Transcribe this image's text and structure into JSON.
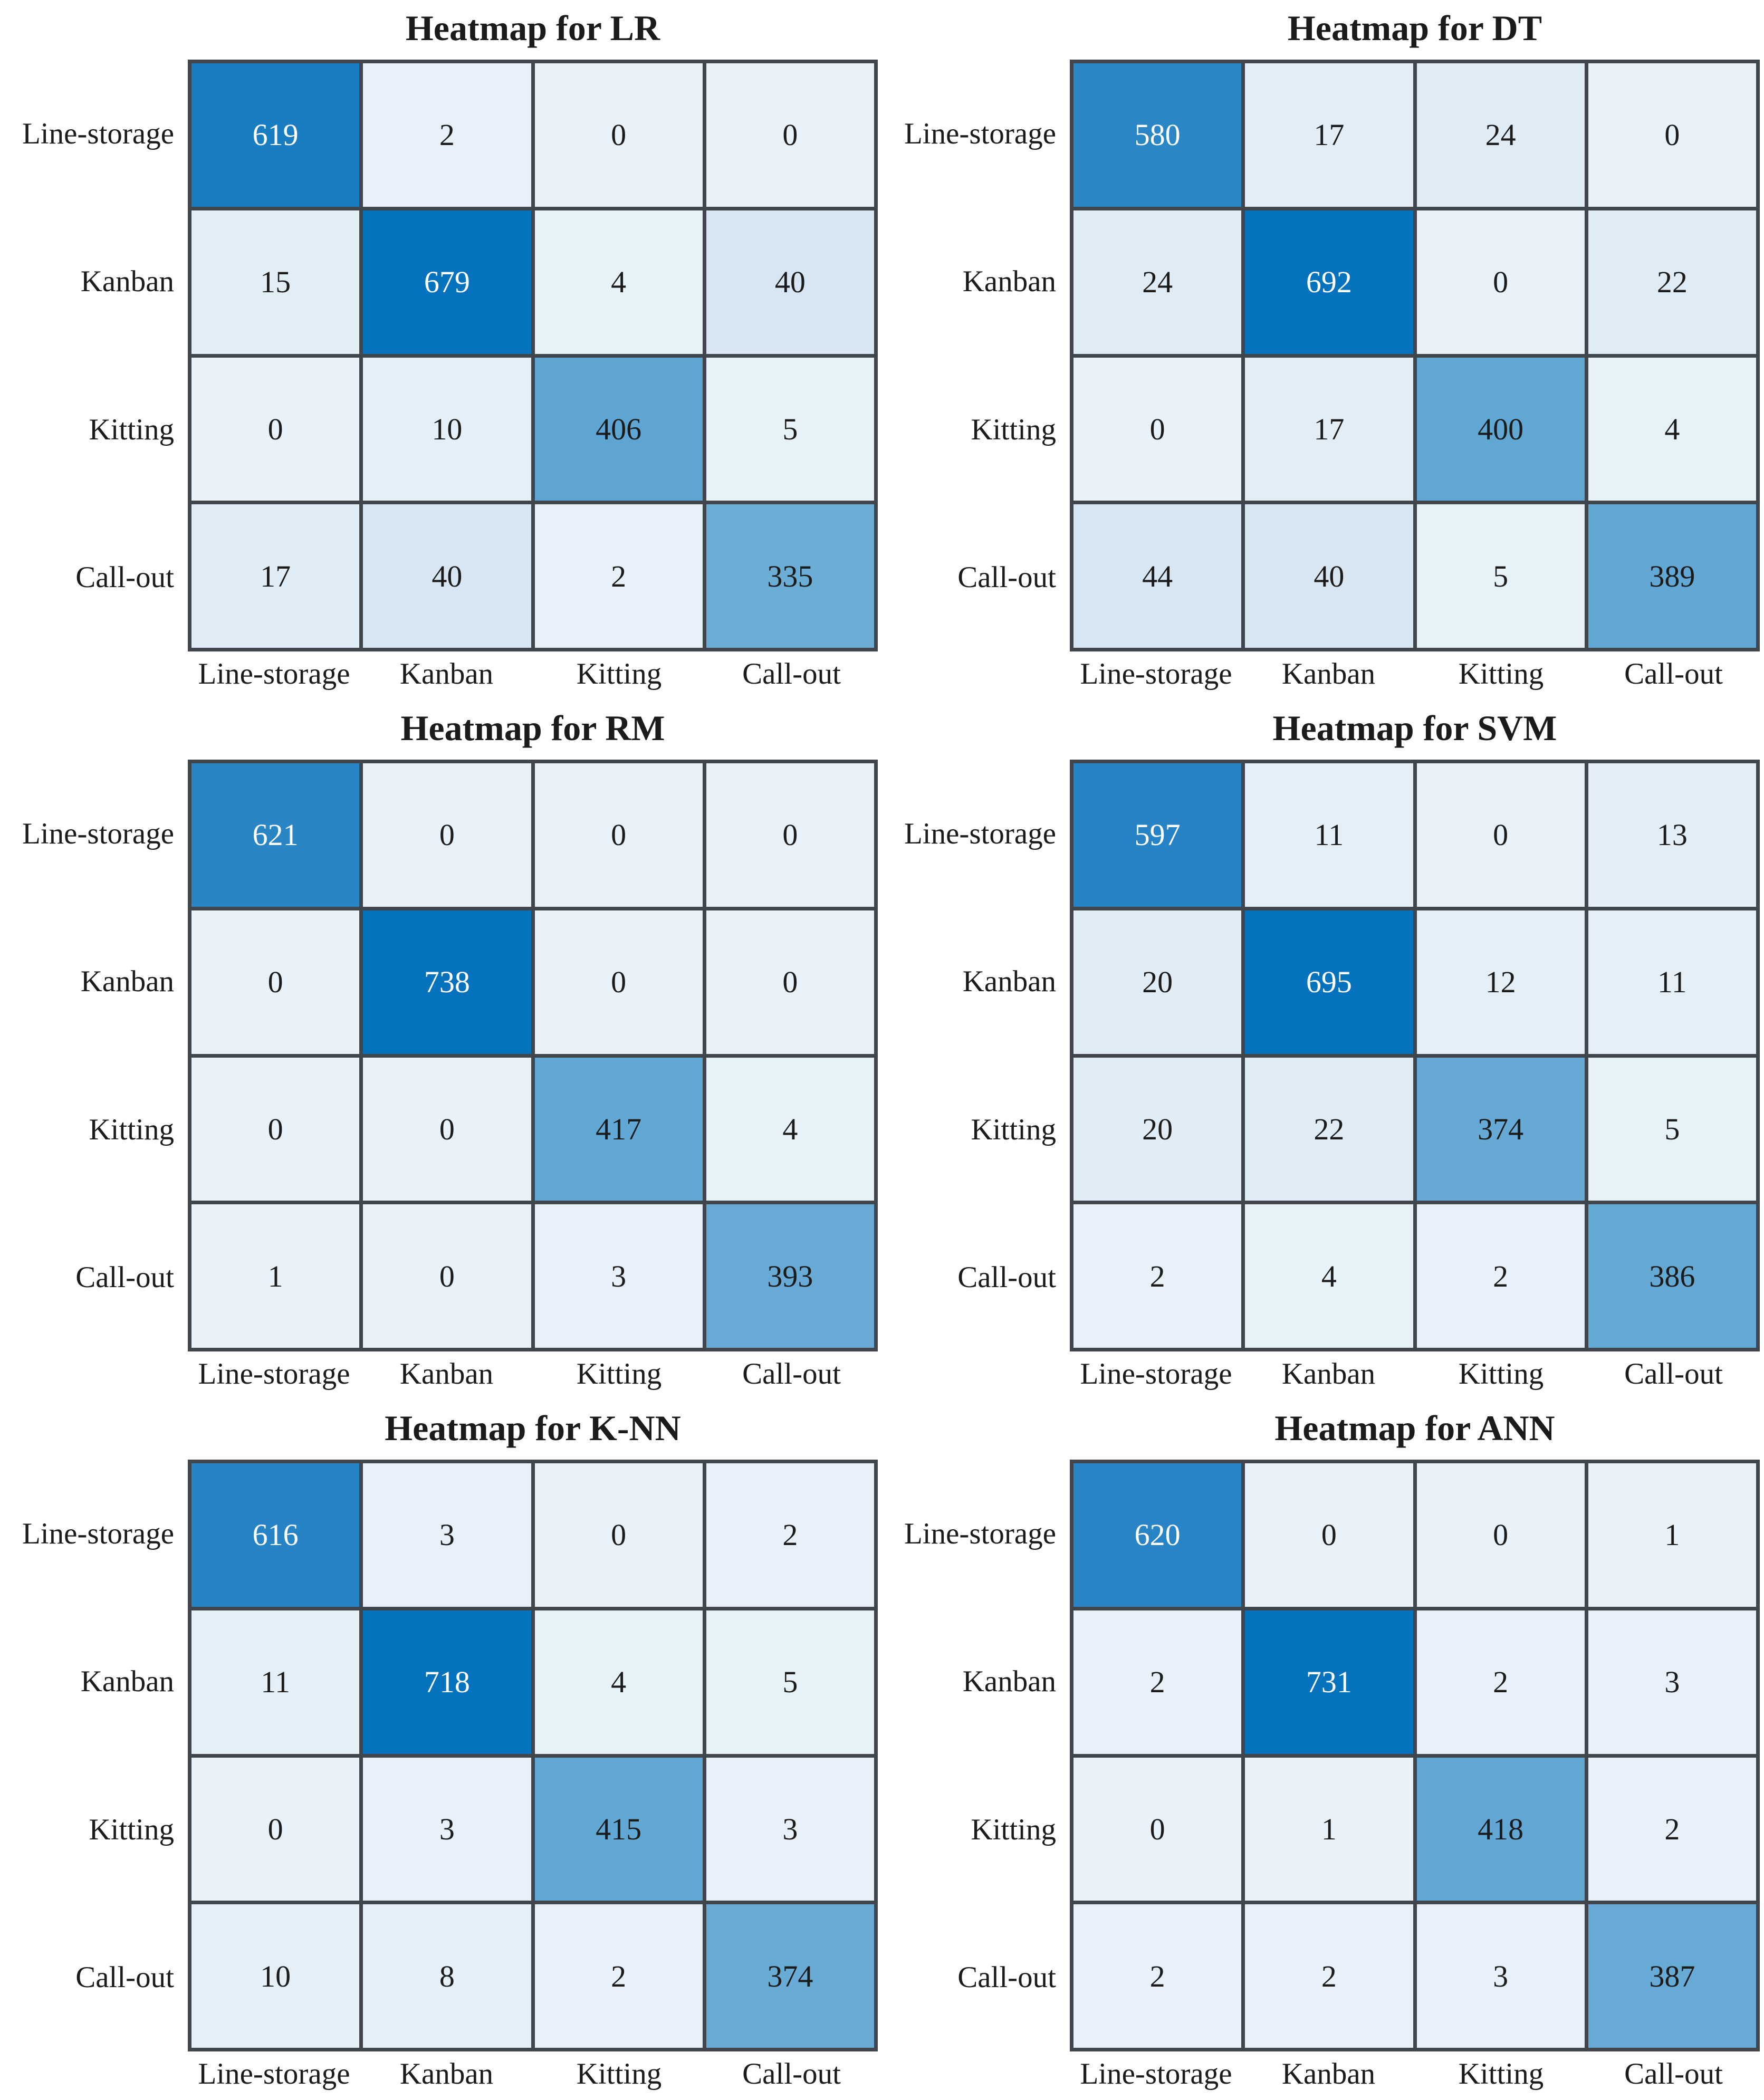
{
  "figure": {
    "background": "#ffffff",
    "grid_rows": 3,
    "grid_cols": 2
  },
  "style": {
    "grid_line_color": "#40464c",
    "title_color": "#1b1b1b",
    "label_color": "#1b1b1b",
    "cell_text_dark": "#1b1b1b",
    "cell_text_light": "#ffffff",
    "white_text_threshold": 0.7,
    "colormap_stops": [
      {
        "t": 0.0,
        "color": "#e9f2f9"
      },
      {
        "t": 0.06,
        "color": "#d7e6f2"
      },
      {
        "t": 0.5,
        "color": "#6aacd6"
      },
      {
        "t": 0.62,
        "color": "#5ca4d2"
      },
      {
        "t": 0.85,
        "color": "#2884c5"
      },
      {
        "t": 1.0,
        "color": "#0472bd"
      }
    ]
  },
  "chart_data": [
    {
      "type": "heatmap",
      "title": "Heatmap for LR",
      "x_categories": [
        "Line-storage",
        "Kanban",
        "Kitting",
        "Call-out"
      ],
      "y_categories": [
        "Line-storage",
        "Kanban",
        "Kitting",
        "Call-out"
      ],
      "matrix": [
        [
          619,
          2,
          0,
          0
        ],
        [
          15,
          679,
          4,
          40
        ],
        [
          0,
          10,
          406,
          5
        ],
        [
          17,
          40,
          2,
          335
        ]
      ],
      "vmin": 0,
      "vmax": 679,
      "legend": "none",
      "grid": "on"
    },
    {
      "type": "heatmap",
      "title": "Heatmap for DT",
      "x_categories": [
        "Line-storage",
        "Kanban",
        "Kitting",
        "Call-out"
      ],
      "y_categories": [
        "Line-storage",
        "Kanban",
        "Kitting",
        "Call-out"
      ],
      "matrix": [
        [
          580,
          17,
          24,
          0
        ],
        [
          24,
          692,
          0,
          22
        ],
        [
          0,
          17,
          400,
          4
        ],
        [
          44,
          40,
          5,
          389
        ]
      ],
      "vmin": 0,
      "vmax": 692,
      "legend": "none",
      "grid": "on"
    },
    {
      "type": "heatmap",
      "title": "Heatmap for RM",
      "x_categories": [
        "Line-storage",
        "Kanban",
        "Kitting",
        "Call-out"
      ],
      "y_categories": [
        "Line-storage",
        "Kanban",
        "Kitting",
        "Call-out"
      ],
      "matrix": [
        [
          621,
          0,
          0,
          0
        ],
        [
          0,
          738,
          0,
          0
        ],
        [
          0,
          0,
          417,
          4
        ],
        [
          1,
          0,
          3,
          393
        ]
      ],
      "vmin": 0,
      "vmax": 738,
      "legend": "none",
      "grid": "on"
    },
    {
      "type": "heatmap",
      "title": "Heatmap for SVM",
      "x_categories": [
        "Line-storage",
        "Kanban",
        "Kitting",
        "Call-out"
      ],
      "y_categories": [
        "Line-storage",
        "Kanban",
        "Kitting",
        "Call-out"
      ],
      "matrix": [
        [
          597,
          11,
          0,
          13
        ],
        [
          20,
          695,
          12,
          11
        ],
        [
          20,
          22,
          374,
          5
        ],
        [
          2,
          4,
          2,
          386
        ]
      ],
      "vmin": 0,
      "vmax": 695,
      "legend": "none",
      "grid": "on"
    },
    {
      "type": "heatmap",
      "title": "Heatmap for K-NN",
      "x_categories": [
        "Line-storage",
        "Kanban",
        "Kitting",
        "Call-out"
      ],
      "y_categories": [
        "Line-storage",
        "Kanban",
        "Kitting",
        "Call-out"
      ],
      "matrix": [
        [
          616,
          3,
          0,
          2
        ],
        [
          11,
          718,
          4,
          5
        ],
        [
          0,
          3,
          415,
          3
        ],
        [
          10,
          8,
          2,
          374
        ]
      ],
      "vmin": 0,
      "vmax": 718,
      "legend": "none",
      "grid": "on"
    },
    {
      "type": "heatmap",
      "title": "Heatmap for ANN",
      "x_categories": [
        "Line-storage",
        "Kanban",
        "Kitting",
        "Call-out"
      ],
      "y_categories": [
        "Line-storage",
        "Kanban",
        "Kitting",
        "Call-out"
      ],
      "matrix": [
        [
          620,
          0,
          0,
          1
        ],
        [
          2,
          731,
          2,
          3
        ],
        [
          0,
          1,
          418,
          2
        ],
        [
          2,
          2,
          3,
          387
        ]
      ],
      "vmin": 0,
      "vmax": 731,
      "legend": "none",
      "grid": "on"
    }
  ]
}
